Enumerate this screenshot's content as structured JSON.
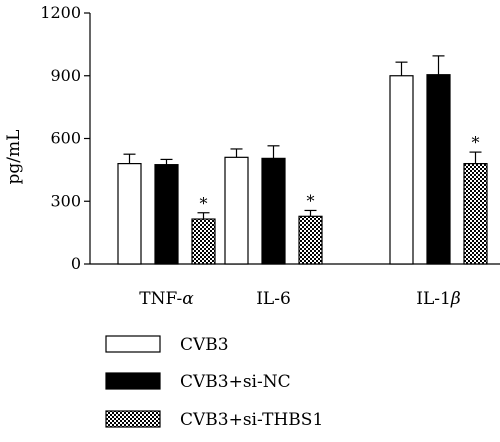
{
  "chart_data": {
    "type": "bar",
    "categories": [
      "TNF-α",
      "IL-6",
      "IL-1β"
    ],
    "category_labels": [
      {
        "main": "TNF-",
        "greek": "α"
      },
      {
        "main": "IL-6",
        "greek": ""
      },
      {
        "main": "IL-1",
        "greek": "β"
      }
    ],
    "series": [
      {
        "name": "CVB3",
        "values": [
          480,
          510,
          900
        ],
        "errors": [
          45,
          40,
          65
        ],
        "fill": "white"
      },
      {
        "name": "CVB3+si-NC",
        "values": [
          475,
          505,
          905
        ],
        "errors": [
          25,
          60,
          90
        ],
        "fill": "black"
      },
      {
        "name": "CVB3+si-THBS1",
        "values": [
          215,
          228,
          480
        ],
        "errors": [
          30,
          28,
          55
        ],
        "fill": "checkered"
      }
    ],
    "significance_marks": [
      "*",
      "*",
      "*"
    ],
    "xlabel": "",
    "ylabel": "pg/mL",
    "ylim": [
      0,
      1200
    ],
    "yticks": [
      0,
      300,
      600,
      900,
      1200
    ],
    "grid": false,
    "legend_position": "bottom-left",
    "colors": {
      "axis": "#000000",
      "bar_black": "#000000",
      "bar_white": "#ffffff"
    }
  }
}
